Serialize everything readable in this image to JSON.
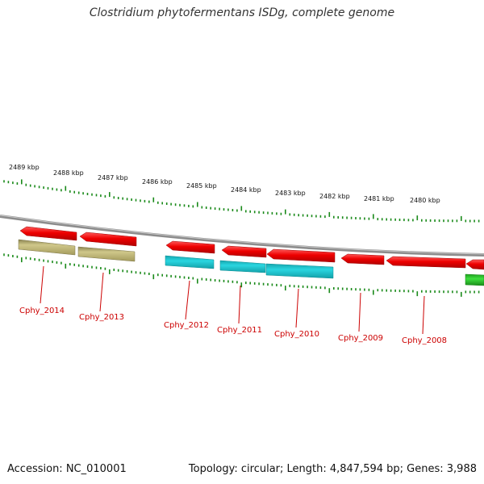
{
  "title": "Clostridium phytofermentans ISDg, complete genome",
  "footer": {
    "accession": "Accession: NC_010001",
    "summary": "Topology: circular; Length: 4,847,594 bp; Genes: 3,988"
  },
  "scale_labels": [
    "2489 kbp",
    "2488 kbp",
    "2487 kbp",
    "2486 kbp",
    "2485 kbp",
    "2484 kbp",
    "2483 kbp",
    "2482 kbp",
    "2481 kbp",
    "2480 kbp"
  ],
  "gene_labels": [
    "Cphy_2014",
    "Cphy_2013",
    "Cphy_2012",
    "Cphy_2011",
    "Cphy_2010",
    "Cphy_2009",
    "Cphy_2008"
  ],
  "colors": {
    "cds_red": "#ee0000",
    "olive": "#b5ad6a",
    "cyan": "#1ec8d2",
    "green": "#2ec82e",
    "tick_green": "#1a8a1a",
    "backbone": "#888888",
    "label_red": "#cc0000"
  }
}
